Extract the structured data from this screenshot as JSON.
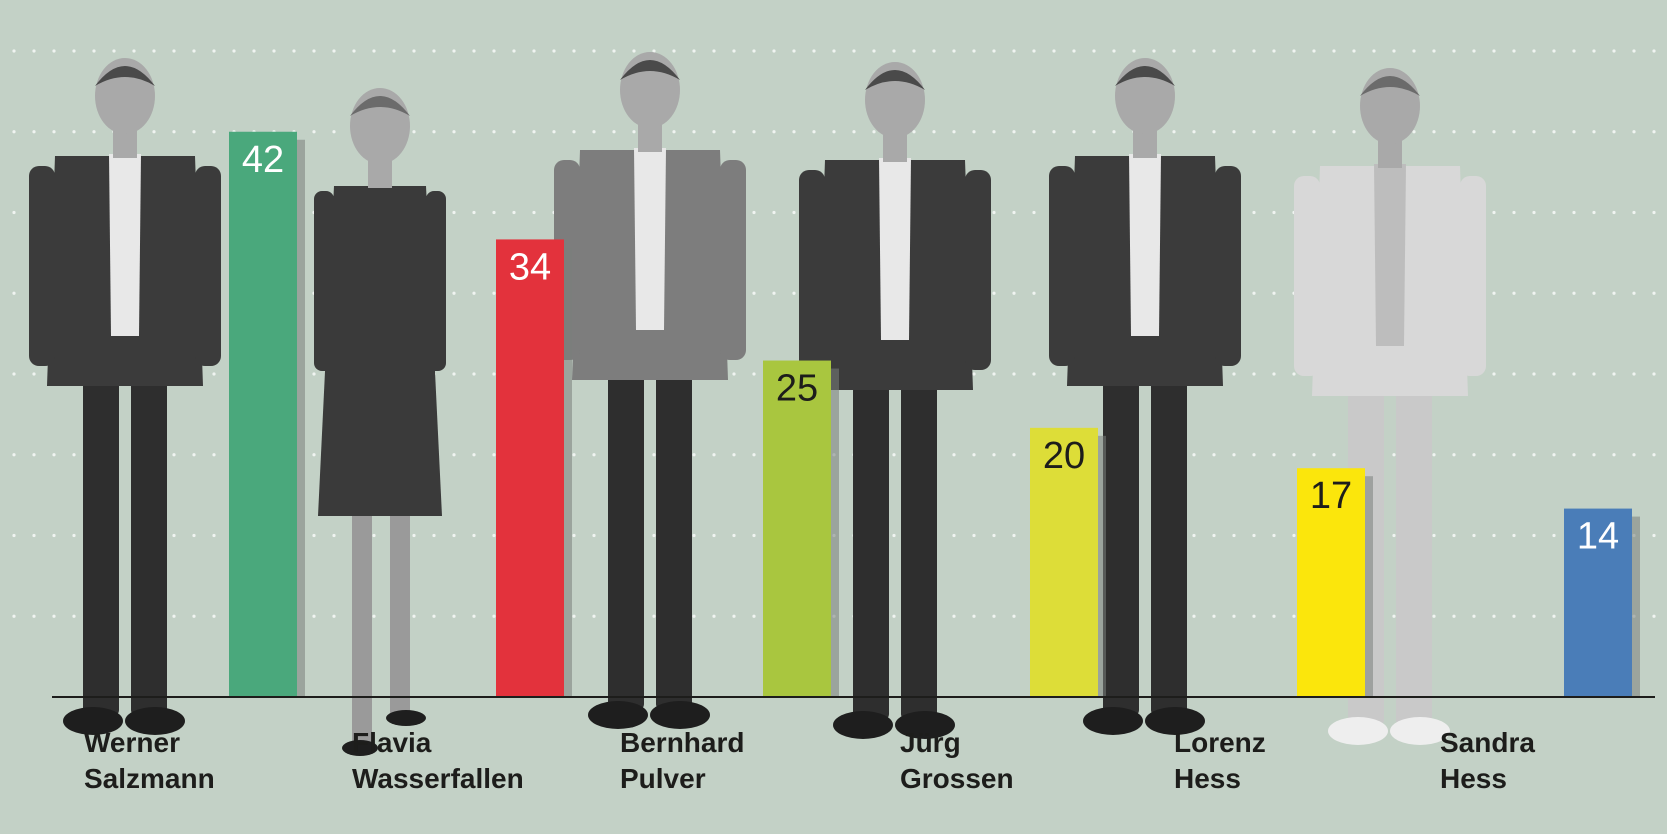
{
  "chart_data": {
    "type": "bar",
    "title": "",
    "xlabel": "",
    "ylabel": "",
    "ylim": [
      0,
      48
    ],
    "grid": true,
    "categories": [
      [
        "Werner",
        "Salzmann"
      ],
      [
        "Flavia",
        "Wasserfallen"
      ],
      [
        "Bernhard",
        "Pulver"
      ],
      [
        "Jürg",
        "Grossen"
      ],
      [
        "Lorenz",
        "Hess"
      ],
      [
        "Sandra",
        "Hess"
      ]
    ],
    "values": [
      42,
      34,
      25,
      20,
      17,
      14
    ],
    "value_labels": [
      "42",
      "34",
      "25",
      "20",
      "17",
      "14"
    ],
    "colors": [
      "#4aa87c",
      "#e3323c",
      "#a9c63f",
      "#dddd38",
      "#fbe60c",
      "#4a7db8"
    ],
    "label_colors": [
      "#ffffff",
      "#ffffff",
      "#1d1d1b",
      "#1d1d1b",
      "#1d1d1b",
      "#ffffff"
    ]
  }
}
